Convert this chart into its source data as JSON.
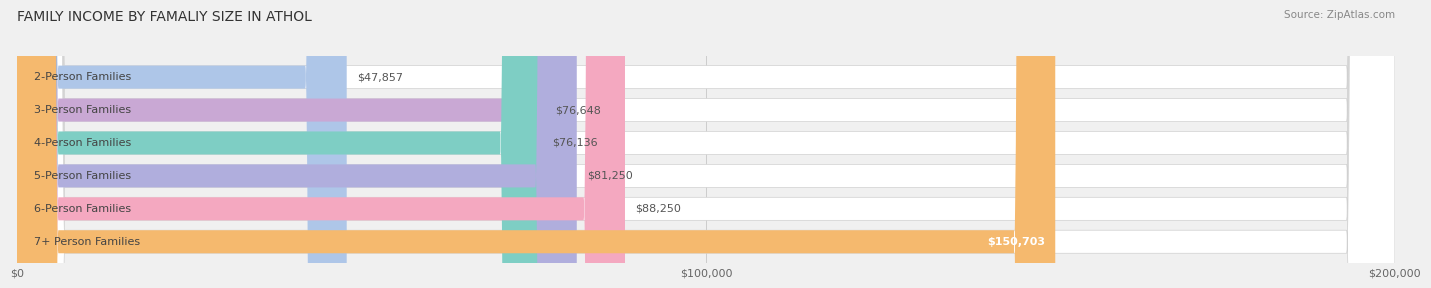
{
  "title": "FAMILY INCOME BY FAMALIY SIZE IN ATHOL",
  "source": "Source: ZipAtlas.com",
  "categories": [
    "2-Person Families",
    "3-Person Families",
    "4-Person Families",
    "5-Person Families",
    "6-Person Families",
    "7+ Person Families"
  ],
  "values": [
    47857,
    76648,
    76136,
    81250,
    88250,
    150703
  ],
  "bar_colors": [
    "#aec6e8",
    "#c9a8d4",
    "#7ecec4",
    "#b0aedd",
    "#f4a8c0",
    "#f5b96e"
  ],
  "value_labels": [
    "$47,857",
    "$76,648",
    "$76,136",
    "$81,250",
    "$88,250",
    "$150,703"
  ],
  "xmax": 200000,
  "xticks": [
    0,
    100000,
    200000
  ],
  "xtick_labels": [
    "$0",
    "$100,000",
    "$200,000"
  ],
  "background_color": "#f0f0f0",
  "title_fontsize": 10,
  "label_fontsize": 8,
  "value_fontsize": 8,
  "source_fontsize": 7.5
}
